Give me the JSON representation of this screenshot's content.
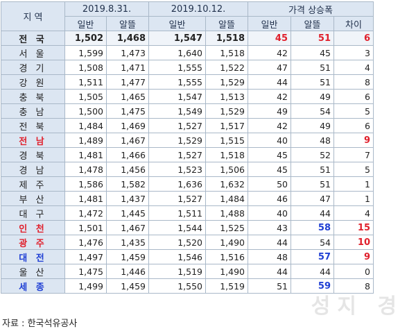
{
  "headers": {
    "region": "지 역",
    "date1": "2019.8.31.",
    "date2": "2019.10.12.",
    "increase": "가격 상승폭",
    "sub": [
      "일반",
      "알뜰",
      "일반",
      "알뜰",
      "일반",
      "알뜰",
      "차이"
    ]
  },
  "rows": [
    {
      "region": "전 국",
      "color": "normal",
      "highlight": true,
      "values": [
        "1,502",
        "1,468",
        "1,547",
        "1,518",
        "45",
        "51",
        "6"
      ],
      "value_colors": [
        "",
        "",
        "",
        "",
        "red",
        "red",
        "red"
      ]
    },
    {
      "region": "서 울",
      "color": "normal",
      "highlight": false,
      "values": [
        "1,599",
        "1,473",
        "1,640",
        "1,518",
        "42",
        "45",
        "3"
      ],
      "value_colors": [
        "",
        "",
        "",
        "",
        "",
        "",
        ""
      ]
    },
    {
      "region": "경 기",
      "color": "normal",
      "highlight": false,
      "values": [
        "1,508",
        "1,471",
        "1,555",
        "1,522",
        "47",
        "51",
        "4"
      ],
      "value_colors": [
        "",
        "",
        "",
        "",
        "",
        "",
        ""
      ]
    },
    {
      "region": "강 원",
      "color": "normal",
      "highlight": false,
      "values": [
        "1,511",
        "1,477",
        "1,555",
        "1,529",
        "44",
        "51",
        "8"
      ],
      "value_colors": [
        "",
        "",
        "",
        "",
        "",
        "",
        ""
      ]
    },
    {
      "region": "충 북",
      "color": "normal",
      "highlight": false,
      "values": [
        "1,505",
        "1,465",
        "1,547",
        "1,513",
        "42",
        "49",
        "6"
      ],
      "value_colors": [
        "",
        "",
        "",
        "",
        "",
        "",
        ""
      ]
    },
    {
      "region": "충 남",
      "color": "normal",
      "highlight": false,
      "values": [
        "1,500",
        "1,475",
        "1,549",
        "1,529",
        "49",
        "54",
        "5"
      ],
      "value_colors": [
        "",
        "",
        "",
        "",
        "",
        "",
        ""
      ]
    },
    {
      "region": "전 북",
      "color": "normal",
      "highlight": false,
      "values": [
        "1,484",
        "1,469",
        "1,527",
        "1,517",
        "42",
        "49",
        "6"
      ],
      "value_colors": [
        "",
        "",
        "",
        "",
        "",
        "",
        ""
      ]
    },
    {
      "region": "전 남",
      "color": "red",
      "highlight": false,
      "values": [
        "1,489",
        "1,467",
        "1,529",
        "1,515",
        "40",
        "48",
        "9"
      ],
      "value_colors": [
        "",
        "",
        "",
        "",
        "",
        "",
        "red"
      ]
    },
    {
      "region": "경 북",
      "color": "normal",
      "highlight": false,
      "values": [
        "1,481",
        "1,466",
        "1,527",
        "1,518",
        "45",
        "52",
        "7"
      ],
      "value_colors": [
        "",
        "",
        "",
        "",
        "",
        "",
        ""
      ]
    },
    {
      "region": "경 남",
      "color": "normal",
      "highlight": false,
      "values": [
        "1,478",
        "1,456",
        "1,523",
        "1,506",
        "45",
        "51",
        "5"
      ],
      "value_colors": [
        "",
        "",
        "",
        "",
        "",
        "",
        ""
      ]
    },
    {
      "region": "제 주",
      "color": "normal",
      "highlight": false,
      "values": [
        "1,586",
        "1,582",
        "1,636",
        "1,632",
        "50",
        "51",
        "1"
      ],
      "value_colors": [
        "",
        "",
        "",
        "",
        "",
        "",
        ""
      ]
    },
    {
      "region": "부 산",
      "color": "normal",
      "highlight": false,
      "values": [
        "1,481",
        "1,437",
        "1,527",
        "1,484",
        "46",
        "47",
        "1"
      ],
      "value_colors": [
        "",
        "",
        "",
        "",
        "",
        "",
        ""
      ]
    },
    {
      "region": "대 구",
      "color": "normal",
      "highlight": false,
      "values": [
        "1,472",
        "1,445",
        "1,511",
        "1,488",
        "40",
        "44",
        "4"
      ],
      "value_colors": [
        "",
        "",
        "",
        "",
        "",
        "",
        ""
      ]
    },
    {
      "region": "인 천",
      "color": "red",
      "highlight": false,
      "values": [
        "1,501",
        "1,467",
        "1,544",
        "1,525",
        "43",
        "58",
        "15"
      ],
      "value_colors": [
        "",
        "",
        "",
        "",
        "",
        "blue",
        "red"
      ]
    },
    {
      "region": "광 주",
      "color": "red",
      "highlight": false,
      "values": [
        "1,476",
        "1,435",
        "1,520",
        "1,490",
        "44",
        "54",
        "10"
      ],
      "value_colors": [
        "",
        "",
        "",
        "",
        "",
        "",
        "red"
      ]
    },
    {
      "region": "대 전",
      "color": "blue",
      "highlight": false,
      "values": [
        "1,497",
        "1,459",
        "1,546",
        "1,516",
        "48",
        "57",
        "9"
      ],
      "value_colors": [
        "",
        "",
        "",
        "",
        "",
        "blue",
        "red"
      ]
    },
    {
      "region": "울 산",
      "color": "normal",
      "highlight": false,
      "values": [
        "1,475",
        "1,446",
        "1,519",
        "1,490",
        "44",
        "44",
        "0"
      ],
      "value_colors": [
        "",
        "",
        "",
        "",
        "",
        "",
        ""
      ]
    },
    {
      "region": "세 종",
      "color": "blue",
      "highlight": false,
      "values": [
        "1,499",
        "1,459",
        "1,550",
        "1,519",
        "51",
        "59",
        "8"
      ],
      "value_colors": [
        "",
        "",
        "",
        "",
        "",
        "blue",
        ""
      ]
    }
  ],
  "source": "자료 : 한국석유공사",
  "watermark": "성지 경"
}
